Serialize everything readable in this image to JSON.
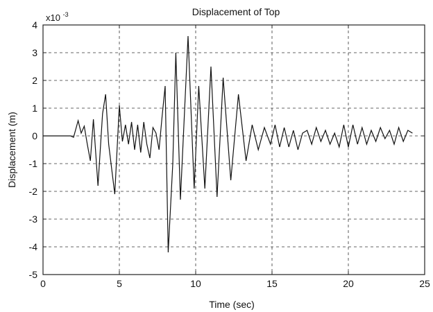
{
  "chart_data": {
    "type": "line",
    "title": "Displacement of Top",
    "xlabel": "Time (sec)",
    "ylabel": "Displacement (m)",
    "y_scale_text": "x10",
    "y_scale_exponent": "-3",
    "xlim": [
      0,
      25
    ],
    "ylim": [
      -5,
      4
    ],
    "x_ticks": [
      0,
      5,
      10,
      15,
      20,
      25
    ],
    "y_ticks": [
      -5,
      -4,
      -3,
      -2,
      -1,
      0,
      1,
      2,
      3,
      4
    ],
    "grid": true,
    "line_color": "#111111",
    "series": [
      {
        "units_note": "y values shown in units of 1e-3 m",
        "points": [
          [
            0.0,
            0.0
          ],
          [
            1.8,
            0.0
          ],
          [
            2.0,
            -0.05
          ],
          [
            2.3,
            0.55
          ],
          [
            2.5,
            0.1
          ],
          [
            2.7,
            0.35
          ],
          [
            2.9,
            -0.3
          ],
          [
            3.1,
            -0.9
          ],
          [
            3.3,
            0.6
          ],
          [
            3.6,
            -1.8
          ],
          [
            3.9,
            0.8
          ],
          [
            4.1,
            1.5
          ],
          [
            4.3,
            -0.3
          ],
          [
            4.7,
            -2.1
          ],
          [
            5.0,
            1.1
          ],
          [
            5.2,
            -0.2
          ],
          [
            5.4,
            0.4
          ],
          [
            5.6,
            -0.3
          ],
          [
            5.8,
            0.5
          ],
          [
            6.0,
            -0.5
          ],
          [
            6.2,
            0.4
          ],
          [
            6.4,
            -0.6
          ],
          [
            6.6,
            0.5
          ],
          [
            6.8,
            -0.3
          ],
          [
            7.0,
            -0.8
          ],
          [
            7.2,
            0.3
          ],
          [
            7.4,
            0.1
          ],
          [
            7.6,
            -0.5
          ],
          [
            7.8,
            0.7
          ],
          [
            8.0,
            1.8
          ],
          [
            8.2,
            -4.2
          ],
          [
            8.5,
            -1.0
          ],
          [
            8.7,
            3.0
          ],
          [
            9.0,
            -2.3
          ],
          [
            9.5,
            3.6
          ],
          [
            9.9,
            -1.9
          ],
          [
            10.2,
            1.8
          ],
          [
            10.6,
            -1.9
          ],
          [
            11.0,
            2.5
          ],
          [
            11.4,
            -2.2
          ],
          [
            11.8,
            2.1
          ],
          [
            12.3,
            -1.6
          ],
          [
            12.8,
            1.5
          ],
          [
            13.3,
            -0.9
          ],
          [
            13.7,
            0.4
          ],
          [
            14.1,
            -0.5
          ],
          [
            14.5,
            0.3
          ],
          [
            14.9,
            -0.3
          ],
          [
            15.2,
            0.4
          ],
          [
            15.5,
            -0.4
          ],
          [
            15.8,
            0.3
          ],
          [
            16.1,
            -0.4
          ],
          [
            16.4,
            0.2
          ],
          [
            16.7,
            -0.5
          ],
          [
            17.0,
            0.1
          ],
          [
            17.3,
            0.2
          ],
          [
            17.6,
            -0.3
          ],
          [
            17.9,
            0.3
          ],
          [
            18.2,
            -0.2
          ],
          [
            18.5,
            0.2
          ],
          [
            18.8,
            -0.3
          ],
          [
            19.1,
            0.1
          ],
          [
            19.4,
            -0.4
          ],
          [
            19.7,
            0.4
          ],
          [
            20.0,
            -0.4
          ],
          [
            20.3,
            0.4
          ],
          [
            20.6,
            -0.3
          ],
          [
            20.9,
            0.3
          ],
          [
            21.2,
            -0.3
          ],
          [
            21.5,
            0.2
          ],
          [
            21.8,
            -0.2
          ],
          [
            22.1,
            0.3
          ],
          [
            22.4,
            -0.1
          ],
          [
            22.7,
            0.2
          ],
          [
            23.0,
            -0.3
          ],
          [
            23.3,
            0.3
          ],
          [
            23.6,
            -0.2
          ],
          [
            23.9,
            0.2
          ],
          [
            24.2,
            0.1
          ]
        ]
      }
    ]
  }
}
